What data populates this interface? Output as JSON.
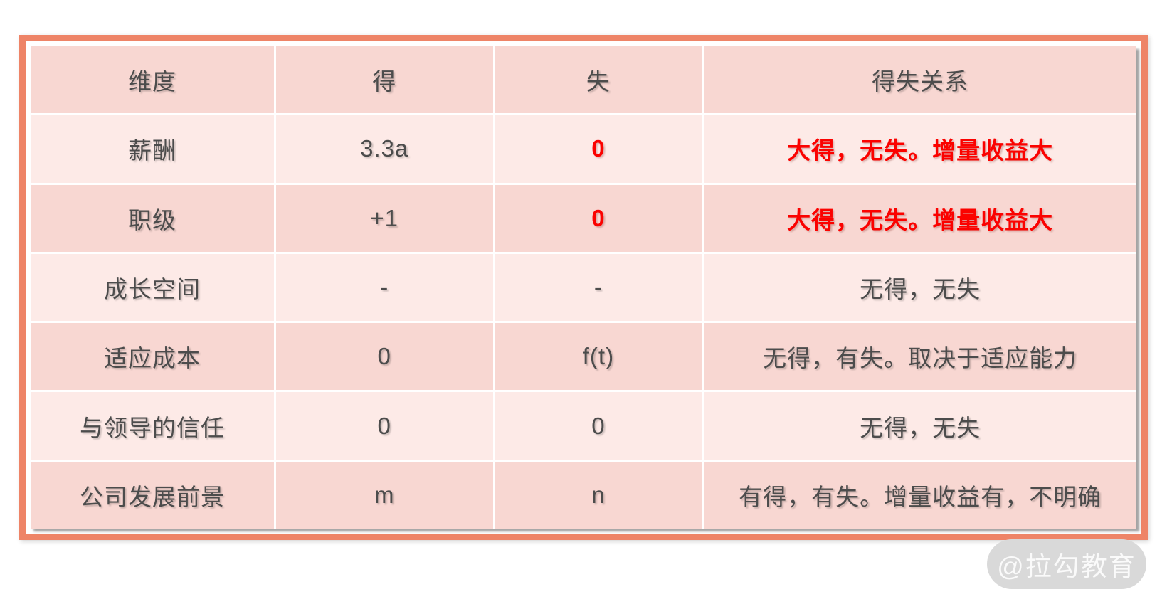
{
  "colors": {
    "frame_orange": "#ee8467",
    "row_dark": "#f8d7d2",
    "row_light": "#fdeae7",
    "divider_white": "#ffffff",
    "text_gray": "#4c4c4c",
    "accent_red": "#fb0200",
    "watermark_bg": "#d9d9d9",
    "watermark_fg": "#fafafa"
  },
  "table": {
    "columns": [
      "维度",
      "得",
      "失",
      "得失关系"
    ],
    "rows": [
      {
        "dimension": "薪酬",
        "gain": "3.3a",
        "loss": "0",
        "relation": "大得，无失。增量收益大"
      },
      {
        "dimension": "职级",
        "gain": "+1",
        "loss": "0",
        "relation": "大得，无失。增量收益大"
      },
      {
        "dimension": "成长空间",
        "gain": "-",
        "loss": "-",
        "relation": "无得，无失"
      },
      {
        "dimension": "适应成本",
        "gain": "0",
        "loss": "f(t)",
        "relation": "无得，有失。取决于适应能力"
      },
      {
        "dimension": "与领导的信任",
        "gain": "0",
        "loss": "0",
        "relation": "无得，无失"
      },
      {
        "dimension": "公司发展前景",
        "gain": "m",
        "loss": "n",
        "relation": "有得，有失。增量收益有，不明确"
      }
    ]
  },
  "watermark": {
    "label": "@拉勾教育"
  }
}
